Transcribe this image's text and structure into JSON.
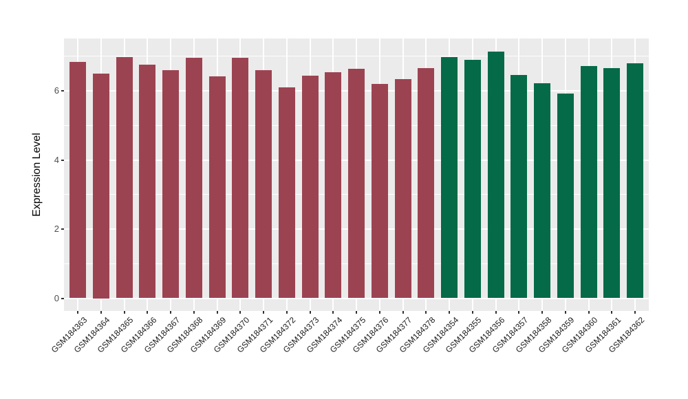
{
  "chart_data": {
    "type": "bar",
    "title": "",
    "xlabel": "",
    "ylabel": "Expression Level",
    "ylim": [
      0,
      7.5
    ],
    "ytick_values": [
      0,
      2,
      4,
      6
    ],
    "ytick_labels": [
      "0",
      "2",
      "4",
      "6"
    ],
    "minor_gridline_values": [
      1,
      3,
      5,
      7
    ],
    "grid": "white major and minor gridlines on light gray panel",
    "legend_position": "none",
    "groups": [
      {
        "name": "GSM184363-GSM184378",
        "color": "#9c4352"
      },
      {
        "name": "GSM184354-GSM184362",
        "color": "#046a48"
      }
    ],
    "bars": [
      {
        "label": "GSM184363",
        "value": 6.84,
        "group": 0
      },
      {
        "label": "GSM184364",
        "value": 6.5,
        "group": 0
      },
      {
        "label": "GSM184365",
        "value": 6.97,
        "group": 0
      },
      {
        "label": "GSM184366",
        "value": 6.76,
        "group": 0
      },
      {
        "label": "GSM184367",
        "value": 6.6,
        "group": 0
      },
      {
        "label": "GSM184368",
        "value": 6.96,
        "group": 0
      },
      {
        "label": "GSM184369",
        "value": 6.42,
        "group": 0
      },
      {
        "label": "GSM184370",
        "value": 6.95,
        "group": 0
      },
      {
        "label": "GSM184371",
        "value": 6.59,
        "group": 0
      },
      {
        "label": "GSM184372",
        "value": 6.09,
        "group": 0
      },
      {
        "label": "GSM184373",
        "value": 6.44,
        "group": 0
      },
      {
        "label": "GSM184374",
        "value": 6.54,
        "group": 0
      },
      {
        "label": "GSM184375",
        "value": 6.63,
        "group": 0
      },
      {
        "label": "GSM184376",
        "value": 6.2,
        "group": 0
      },
      {
        "label": "GSM184377",
        "value": 6.34,
        "group": 0
      },
      {
        "label": "GSM184378",
        "value": 6.66,
        "group": 0
      },
      {
        "label": "GSM184354",
        "value": 6.98,
        "group": 1
      },
      {
        "label": "GSM184355",
        "value": 6.9,
        "group": 1
      },
      {
        "label": "GSM184356",
        "value": 7.14,
        "group": 1
      },
      {
        "label": "GSM184357",
        "value": 6.46,
        "group": 1
      },
      {
        "label": "GSM184358",
        "value": 6.22,
        "group": 1
      },
      {
        "label": "GSM184359",
        "value": 5.93,
        "group": 1
      },
      {
        "label": "GSM184360",
        "value": 6.72,
        "group": 1
      },
      {
        "label": "GSM184361",
        "value": 6.66,
        "group": 1
      },
      {
        "label": "GSM184362",
        "value": 6.8,
        "group": 1
      }
    ]
  },
  "colors": {
    "page_background": "#ffffff",
    "panel_background": "#ebebeb",
    "gridline": "#ffffff",
    "bar_red": "#9c4352",
    "bar_green": "#046a48",
    "axis_tick": "#333333",
    "y_tick_text": "#4d4d4d",
    "x_tick_text": "#1a1a1a",
    "axis_title_text": "#000000"
  }
}
